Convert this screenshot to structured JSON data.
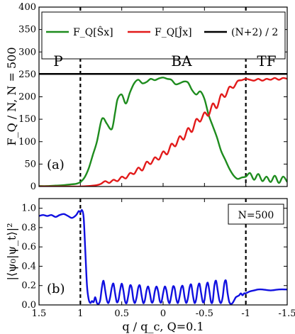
{
  "chart_data": [
    {
      "type": "line",
      "panel_label": "(a)",
      "ylabel": "F_Q / N, N = 500",
      "xlim": [
        1.5,
        -1.5
      ],
      "ylim": [
        0,
        400
      ],
      "x_reversed": true,
      "yticks": [
        "0",
        "50",
        "100",
        "150",
        "200",
        "250",
        "300",
        "350",
        "400"
      ],
      "legend": {
        "placement": "top",
        "entries": [
          "F_Q[Ŝx]",
          "F_Q[Ĵx]",
          "(N+2) / 2"
        ]
      },
      "regions": [
        "P",
        "BA",
        "TF"
      ],
      "vlines": [
        1,
        -1
      ],
      "hline": {
        "name": "(N+2) / 2",
        "y": 251,
        "color": "#000000"
      },
      "series": [
        {
          "name": "F_Q[Ŝx]",
          "color": "#1e8c1e",
          "x": [
            1.5,
            1.4,
            1.3,
            1.2,
            1.1,
            1.05,
            1.0,
            0.95,
            0.9,
            0.85,
            0.8,
            0.75,
            0.72,
            0.68,
            0.62,
            0.58,
            0.55,
            0.5,
            0.45,
            0.4,
            0.35,
            0.3,
            0.25,
            0.2,
            0.15,
            0.1,
            0.05,
            0.0,
            -0.05,
            -0.1,
            -0.15,
            -0.2,
            -0.25,
            -0.3,
            -0.35,
            -0.4,
            -0.45,
            -0.5,
            -0.55,
            -0.6,
            -0.65,
            -0.7,
            -0.75,
            -0.8,
            -0.85,
            -0.9,
            -0.95,
            -1.0,
            -1.05,
            -1.1,
            -1.15,
            -1.2,
            -1.25,
            -1.3,
            -1.35,
            -1.4,
            -1.45,
            -1.5
          ],
          "y": [
            1,
            1,
            2,
            3,
            5,
            6,
            10,
            20,
            40,
            70,
            100,
            145,
            152,
            140,
            128,
            165,
            195,
            205,
            185,
            210,
            230,
            238,
            230,
            233,
            240,
            237,
            241,
            243,
            240,
            238,
            228,
            230,
            234,
            232,
            215,
            205,
            212,
            195,
            160,
            135,
            110,
            80,
            60,
            40,
            25,
            17,
            20,
            22,
            30,
            15,
            28,
            12,
            22,
            10,
            24,
            8,
            22,
            10
          ]
        },
        {
          "name": "F_Q[Ĵx]",
          "color": "#e21a1a",
          "x": [
            1.5,
            1.3,
            1.1,
            1.0,
            0.9,
            0.8,
            0.75,
            0.7,
            0.65,
            0.6,
            0.55,
            0.5,
            0.45,
            0.4,
            0.35,
            0.3,
            0.25,
            0.2,
            0.15,
            0.1,
            0.05,
            0.0,
            -0.05,
            -0.1,
            -0.15,
            -0.2,
            -0.25,
            -0.3,
            -0.35,
            -0.4,
            -0.45,
            -0.5,
            -0.55,
            -0.6,
            -0.65,
            -0.7,
            -0.75,
            -0.8,
            -0.85,
            -0.9,
            -0.95,
            -1.0,
            -1.05,
            -1.1,
            -1.15,
            -1.2,
            -1.25,
            -1.3,
            -1.35,
            -1.4,
            -1.45,
            -1.5
          ],
          "y": [
            0,
            0,
            0,
            0,
            1,
            3,
            6,
            12,
            8,
            15,
            12,
            22,
            18,
            30,
            28,
            42,
            36,
            55,
            50,
            65,
            60,
            78,
            72,
            95,
            90,
            112,
            105,
            130,
            122,
            150,
            145,
            165,
            158,
            185,
            175,
            205,
            200,
            222,
            220,
            235,
            237,
            240,
            238,
            236,
            240,
            236,
            240,
            238,
            242,
            238,
            242,
            240
          ]
        }
      ]
    },
    {
      "type": "line",
      "panel_label": "(b)",
      "ylabel": "|⟨ψ₀|ψ_t⟩|²",
      "xlabel": "q / q_c, Q=0.1",
      "annotation": "N=500",
      "xlim": [
        1.5,
        -1.5
      ],
      "ylim": [
        0.0,
        1.1
      ],
      "x_reversed": true,
      "xticks": [
        "1.5",
        "1",
        "0.5",
        "0",
        "-0.5",
        "-1",
        "-1.5"
      ],
      "yticks": [
        "0.0",
        "0.2",
        "0.4",
        "0.6",
        "0.8",
        "1.0"
      ],
      "vlines": [
        1,
        -1
      ],
      "series": [
        {
          "name": "",
          "color": "#1010e0",
          "x": [
            1.5,
            1.45,
            1.4,
            1.35,
            1.3,
            1.25,
            1.2,
            1.15,
            1.1,
            1.05,
            1.02,
            1.0,
            0.98,
            0.96,
            0.94,
            0.92,
            0.9,
            0.88,
            0.86,
            0.84,
            0.82,
            0.8,
            0.78,
            0.76,
            0.74,
            0.72,
            0.7,
            0.68,
            0.66,
            0.64,
            0.62,
            0.6,
            0.58,
            0.56,
            0.54,
            0.52,
            0.5,
            0.48,
            0.46,
            0.44,
            0.42,
            0.4,
            0.38,
            0.36,
            0.34,
            0.32,
            0.3,
            0.28,
            0.26,
            0.24,
            0.22,
            0.2,
            0.18,
            0.16,
            0.14,
            0.12,
            0.1,
            0.08,
            0.06,
            0.04,
            0.02,
            0.0,
            -0.02,
            -0.04,
            -0.06,
            -0.08,
            -0.1,
            -0.12,
            -0.14,
            -0.16,
            -0.18,
            -0.2,
            -0.22,
            -0.24,
            -0.26,
            -0.28,
            -0.3,
            -0.32,
            -0.34,
            -0.36,
            -0.38,
            -0.4,
            -0.42,
            -0.44,
            -0.46,
            -0.48,
            -0.5,
            -0.52,
            -0.54,
            -0.56,
            -0.58,
            -0.6,
            -0.62,
            -0.64,
            -0.66,
            -0.68,
            -0.7,
            -0.72,
            -0.74,
            -0.76,
            -0.78,
            -0.8,
            -0.82,
            -0.84,
            -0.86,
            -0.88,
            -0.9,
            -0.92,
            -0.94,
            -0.96,
            -0.98,
            -1.0,
            -1.05,
            -1.1,
            -1.15,
            -1.2,
            -1.3,
            -1.4,
            -1.5
          ],
          "y": [
            0.92,
            0.93,
            0.92,
            0.93,
            0.91,
            0.93,
            0.94,
            0.92,
            0.9,
            0.93,
            0.97,
            0.96,
            0.98,
            0.9,
            0.55,
            0.2,
            0.06,
            0.02,
            0.04,
            0.03,
            0.08,
            0.02,
            0.01,
            0.05,
            0.18,
            0.25,
            0.15,
            0.05,
            0.02,
            0.08,
            0.18,
            0.22,
            0.12,
            0.03,
            0.05,
            0.15,
            0.22,
            0.15,
            0.04,
            0.02,
            0.1,
            0.2,
            0.18,
            0.06,
            0.02,
            0.08,
            0.18,
            0.2,
            0.1,
            0.02,
            0.05,
            0.15,
            0.19,
            0.12,
            0.03,
            0.04,
            0.14,
            0.19,
            0.14,
            0.04,
            0.03,
            0.12,
            0.19,
            0.15,
            0.05,
            0.02,
            0.1,
            0.19,
            0.17,
            0.06,
            0.02,
            0.09,
            0.18,
            0.19,
            0.08,
            0.02,
            0.07,
            0.18,
            0.21,
            0.1,
            0.02,
            0.06,
            0.18,
            0.22,
            0.12,
            0.03,
            0.05,
            0.18,
            0.23,
            0.14,
            0.03,
            0.04,
            0.2,
            0.25,
            0.15,
            0.05,
            0.02,
            0.08,
            0.22,
            0.25,
            0.12,
            0.03,
            0.01,
            0.02,
            0.05,
            0.08,
            0.09,
            0.1,
            0.12,
            0.1,
            0.12,
            0.12,
            0.14,
            0.15,
            0.16,
            0.16,
            0.15,
            0.16,
            0.16
          ]
        }
      ]
    }
  ]
}
